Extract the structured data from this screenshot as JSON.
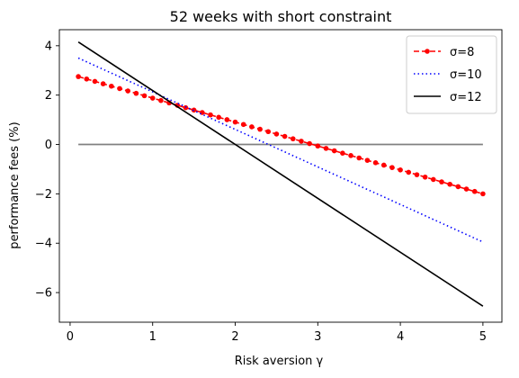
{
  "chart_data": {
    "type": "line",
    "title": "52 weeks with short constraint",
    "xlabel": "Risk aversion γ",
    "ylabel": "performance fees (%)",
    "xlim": [
      -0.13,
      5.23
    ],
    "ylim": [
      -7.2,
      4.65
    ],
    "xticks": [
      0,
      1,
      2,
      3,
      4,
      5
    ],
    "yticks": [
      -6,
      -4,
      -2,
      0,
      2,
      4
    ],
    "grid": false,
    "legend_position": "top-right",
    "reference_line": {
      "y": 0,
      "x_range": [
        0.1,
        5.0
      ],
      "color": "#808080"
    },
    "series": [
      {
        "name": "σ=8",
        "color": "#ff0000",
        "style": "dashed-dot-markers",
        "x": [
          0.1,
          5.0
        ],
        "y": [
          2.75,
          -2.0
        ]
      },
      {
        "name": "σ=10",
        "color": "#0000ff",
        "style": "dotted",
        "x": [
          0.1,
          5.0
        ],
        "y": [
          3.5,
          -3.95
        ]
      },
      {
        "name": "σ=12",
        "color": "#000000",
        "style": "solid",
        "x": [
          0.1,
          5.0
        ],
        "y": [
          4.15,
          -6.55
        ]
      }
    ]
  }
}
